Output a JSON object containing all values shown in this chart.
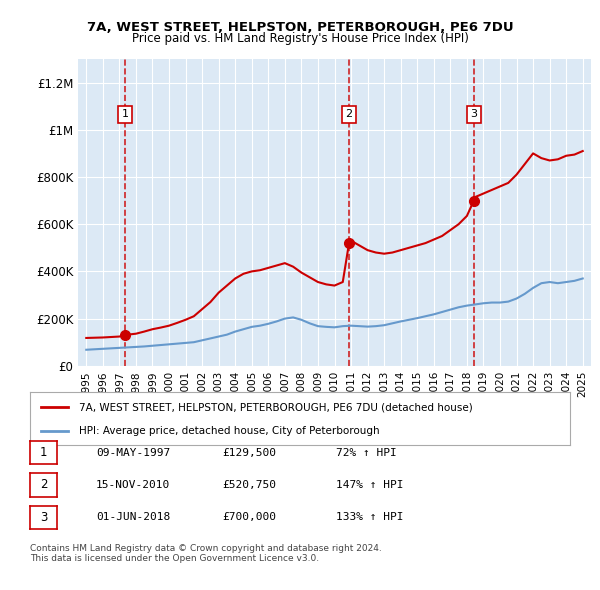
{
  "title1": "7A, WEST STREET, HELPSTON, PETERBOROUGH, PE6 7DU",
  "title2": "Price paid vs. HM Land Registry's House Price Index (HPI)",
  "xlim": [
    1994.5,
    2025.5
  ],
  "ylim": [
    0,
    1300000
  ],
  "yticks": [
    0,
    200000,
    400000,
    600000,
    800000,
    1000000,
    1200000
  ],
  "ytick_labels": [
    "£0",
    "£200K",
    "£400K",
    "£600K",
    "£800K",
    "£1M",
    "£1.2M"
  ],
  "xticks": [
    1995,
    1996,
    1997,
    1998,
    1999,
    2000,
    2001,
    2002,
    2003,
    2004,
    2005,
    2006,
    2007,
    2008,
    2009,
    2010,
    2011,
    2012,
    2013,
    2014,
    2015,
    2016,
    2017,
    2018,
    2019,
    2020,
    2021,
    2022,
    2023,
    2024,
    2025
  ],
  "sale_dates": [
    1997.36,
    2010.88,
    2018.42
  ],
  "sale_prices": [
    129500,
    520750,
    700000
  ],
  "sale_labels": [
    "1",
    "2",
    "3"
  ],
  "legend_line1": "7A, WEST STREET, HELPSTON, PETERBOROUGH, PE6 7DU (detached house)",
  "legend_line2": "HPI: Average price, detached house, City of Peterborough",
  "table_data": [
    [
      "1",
      "09-MAY-1997",
      "£129,500",
      "72% ↑ HPI"
    ],
    [
      "2",
      "15-NOV-2010",
      "£520,750",
      "147% ↑ HPI"
    ],
    [
      "3",
      "01-JUN-2018",
      "£700,000",
      "133% ↑ HPI"
    ]
  ],
  "footer1": "Contains HM Land Registry data © Crown copyright and database right 2024.",
  "footer2": "This data is licensed under the Open Government Licence v3.0.",
  "bg_color": "#dce9f5",
  "line_color_red": "#cc0000",
  "line_color_blue": "#6699cc",
  "hpi_years": [
    1995,
    1995.5,
    1996,
    1996.5,
    1997,
    1997.5,
    1998,
    1998.5,
    1999,
    1999.5,
    2000,
    2000.5,
    2001,
    2001.5,
    2002,
    2002.5,
    2003,
    2003.5,
    2004,
    2004.5,
    2005,
    2005.5,
    2006,
    2006.5,
    2007,
    2007.5,
    2008,
    2008.5,
    2009,
    2009.5,
    2010,
    2010.5,
    2011,
    2011.5,
    2012,
    2012.5,
    2013,
    2013.5,
    2014,
    2014.5,
    2015,
    2015.5,
    2016,
    2016.5,
    2017,
    2017.5,
    2018,
    2018.5,
    2019,
    2019.5,
    2020,
    2020.5,
    2021,
    2021.5,
    2022,
    2022.5,
    2023,
    2023.5,
    2024,
    2024.5,
    2025
  ],
  "hpi_values": [
    68000,
    70000,
    72000,
    74000,
    76000,
    78000,
    80000,
    82000,
    85000,
    88000,
    91000,
    94000,
    97000,
    100000,
    108000,
    116000,
    124000,
    132000,
    145000,
    155000,
    165000,
    170000,
    178000,
    188000,
    200000,
    205000,
    195000,
    180000,
    168000,
    165000,
    163000,
    168000,
    170000,
    168000,
    166000,
    168000,
    172000,
    180000,
    188000,
    195000,
    202000,
    210000,
    218000,
    228000,
    238000,
    248000,
    255000,
    260000,
    265000,
    268000,
    268000,
    272000,
    285000,
    305000,
    330000,
    350000,
    355000,
    350000,
    355000,
    360000,
    370000
  ],
  "price_years": [
    1995,
    1995.5,
    1996,
    1996.5,
    1997,
    1997.36,
    1997.5,
    1998,
    1998.5,
    1999,
    1999.5,
    2000,
    2000.5,
    2001,
    2001.5,
    2002,
    2002.5,
    2003,
    2003.5,
    2004,
    2004.5,
    2005,
    2005.5,
    2006,
    2006.5,
    2007,
    2007.5,
    2008,
    2008.5,
    2009,
    2009.5,
    2010,
    2010.5,
    2010.88,
    2011,
    2011.5,
    2012,
    2012.5,
    2013,
    2013.5,
    2014,
    2014.5,
    2015,
    2015.5,
    2016,
    2016.5,
    2017,
    2017.5,
    2018,
    2018.42,
    2018.5,
    2019,
    2019.5,
    2020,
    2020.5,
    2021,
    2021.5,
    2022,
    2022.5,
    2023,
    2023.5,
    2024,
    2024.5,
    2025
  ],
  "price_values": [
    118000,
    119000,
    120000,
    122000,
    124000,
    129500,
    132000,
    136000,
    145000,
    155000,
    162000,
    170000,
    182000,
    195000,
    210000,
    240000,
    270000,
    310000,
    340000,
    370000,
    390000,
    400000,
    405000,
    415000,
    425000,
    435000,
    420000,
    395000,
    375000,
    355000,
    345000,
    340000,
    355000,
    520750,
    530000,
    510000,
    490000,
    480000,
    475000,
    480000,
    490000,
    500000,
    510000,
    520000,
    535000,
    550000,
    575000,
    600000,
    635000,
    700000,
    715000,
    730000,
    745000,
    760000,
    775000,
    810000,
    855000,
    900000,
    880000,
    870000,
    875000,
    890000,
    895000,
    910000
  ]
}
